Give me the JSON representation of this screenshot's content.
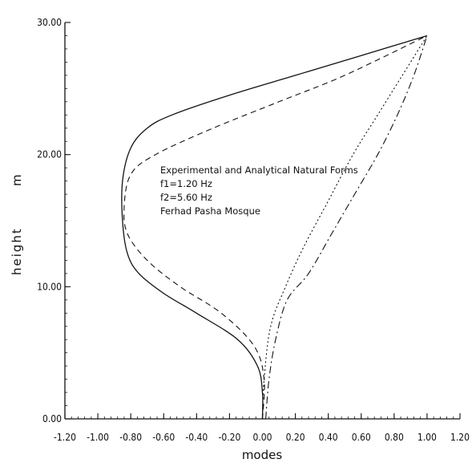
{
  "chart_data": {
    "type": "line",
    "xlabel": "modes",
    "ylabel": "height",
    "ylabel_unit": "m",
    "xlim": [
      -1.2,
      1.2
    ],
    "ylim": [
      0,
      30
    ],
    "x_ticks": [
      "-1.20",
      "-1.00",
      "-0.80",
      "-0.60",
      "-0.40",
      "-0.20",
      "0.00",
      "0.20",
      "0.40",
      "0.60",
      "0.80",
      "1.00",
      "1.20"
    ],
    "y_ticks": [
      "0.00",
      "10.00",
      "20.00",
      "30.00"
    ],
    "annotations": [
      "Experimental and Analytical Natural Forms",
      "f1=1.20 Hz",
      "f2=5.60 Hz",
      "Ferhad Pasha Mosque"
    ],
    "grid": false,
    "series": [
      {
        "style": "solid",
        "color": "#111111",
        "x": [
          0.0,
          0.0,
          -0.03,
          -0.15,
          -0.4,
          -0.6,
          -0.75,
          -0.82,
          -0.85,
          -0.85,
          -0.8,
          -0.7,
          -0.55,
          -0.2,
          0.2,
          0.6,
          1.0
        ],
        "y": [
          0,
          2,
          4,
          6,
          8,
          9.5,
          11,
          12.5,
          15,
          18,
          20.5,
          22,
          23,
          24.5,
          26,
          27.5,
          29
        ]
      },
      {
        "style": "dashed",
        "color": "#111111",
        "x": [
          0.0,
          0.01,
          -0.05,
          -0.25,
          -0.5,
          -0.7,
          -0.82,
          -0.84,
          -0.8,
          -0.65,
          -0.3,
          0.1,
          0.5,
          1.0
        ],
        "y": [
          0,
          3,
          5.5,
          8,
          10,
          12,
          14,
          16,
          18.5,
          20,
          22,
          24,
          26,
          29
        ]
      },
      {
        "style": "dash-dot",
        "color": "#111111",
        "x": [
          0.02,
          0.04,
          0.08,
          0.15,
          0.28,
          0.42,
          0.56,
          0.7,
          0.82,
          0.92,
          1.0
        ],
        "y": [
          0,
          3,
          6,
          9,
          11,
          14,
          17,
          20,
          23,
          26,
          29
        ]
      },
      {
        "style": "dotted",
        "color": "#111111",
        "x": [
          0.0,
          0.01,
          0.05,
          0.14,
          0.25,
          0.4,
          0.55,
          0.7,
          0.85,
          1.0
        ],
        "y": [
          0,
          3,
          7,
          10,
          13,
          16.5,
          20,
          23,
          26,
          29
        ]
      }
    ]
  }
}
